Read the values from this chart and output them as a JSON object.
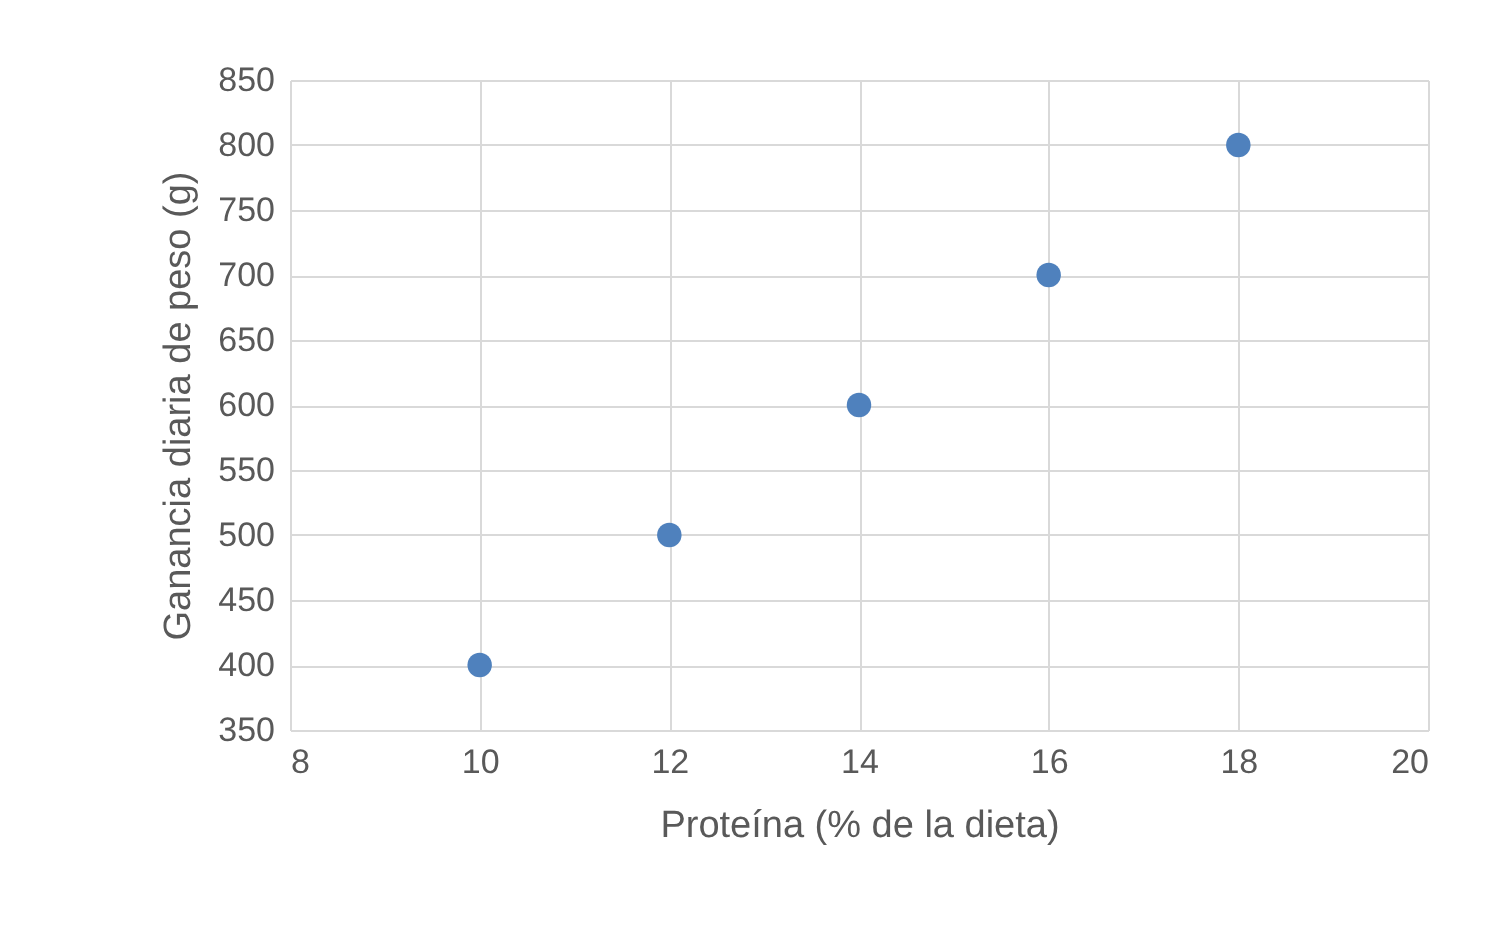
{
  "chart_data": {
    "type": "scatter",
    "xlabel": "Proteína (% de la dieta)",
    "ylabel": "Ganancia diaria de peso (g)",
    "x": [
      10,
      12,
      14,
      16,
      18
    ],
    "series": [
      {
        "color": "#4f81bd",
        "values": [
          400,
          500,
          600,
          700,
          800
        ]
      }
    ],
    "xlim": [
      8,
      20
    ],
    "xticks": [
      8,
      10,
      12,
      14,
      16,
      18,
      20
    ],
    "ylim": [
      350,
      850
    ],
    "yticks": [
      350,
      400,
      450,
      500,
      550,
      600,
      650,
      700,
      750,
      800,
      850
    ],
    "grid": true,
    "marker": "circle"
  }
}
